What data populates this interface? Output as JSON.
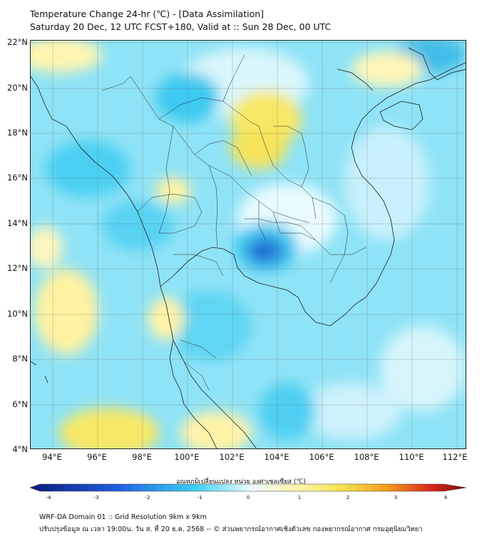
{
  "header": {
    "title": "Temperature Change 24-hr (℃) - [Data Assimilation]",
    "subtitle": "Saturday 20 Dec, 12 UTC FCST+180, Valid at :: Sun 28 Dec, 00 UTC"
  },
  "map": {
    "lat_labels": [
      "22°N",
      "20°N",
      "18°N",
      "16°N",
      "14°N",
      "12°N",
      "10°N",
      "8°N",
      "6°N",
      "4°N"
    ],
    "lon_labels": [
      "94°E",
      "96°E",
      "98°E",
      "100°E",
      "102°E",
      "104°E",
      "106°E",
      "108°E",
      "110°E",
      "112°E"
    ],
    "lat_range": [
      4,
      22
    ],
    "lon_range": [
      93,
      112.4
    ]
  },
  "colorbar": {
    "title": "อุณหภูมิเปลี่ยนแปลง หน่วย องศาเซลเซียส (℃)",
    "ticks": [
      "-4",
      "-3",
      "-2",
      "-1",
      "0",
      "1",
      "2",
      "3",
      "4"
    ],
    "range": [
      -4,
      4
    ],
    "colors": {
      "deep_blue": "#0a1a7a",
      "blue": "#1f5fe0",
      "cyan": "#3fd0f5",
      "light": "#e8fbff",
      "pale_yellow": "#fff4a8",
      "yellow": "#f5e04a",
      "orange": "#f59a1e",
      "red": "#d8261c",
      "dark_red": "#7a0a0a"
    }
  },
  "footer": {
    "line1": "WRF-DA Domain 01 :: Grid Resolution 9km x 9km",
    "line2": "ปรับปรุงข้อมูล ณ เวลา 19:00น. วัน ส. ที่ 20 ธ.ค. 2568 -- © ส่วนพยากรณ์อากาศเชิงตัวเลข กองพยากรณ์อากาศ กรมอุตุนิยมวิทยา"
  }
}
